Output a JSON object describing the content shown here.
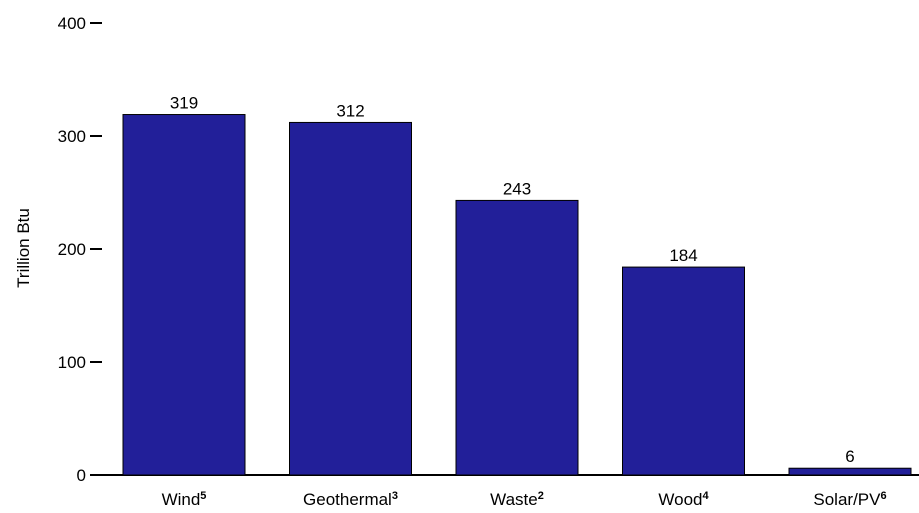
{
  "chart_data": {
    "type": "bar",
    "categories": [
      {
        "name": "Wind",
        "sup": "5"
      },
      {
        "name": "Geothermal",
        "sup": "3"
      },
      {
        "name": "Waste",
        "sup": "2"
      },
      {
        "name": "Wood",
        "sup": "4"
      },
      {
        "name": "Solar/PV",
        "sup": "6"
      }
    ],
    "values": [
      319,
      312,
      243,
      184,
      6
    ],
    "data_labels": [
      "319",
      "312",
      "243",
      "184",
      "6"
    ],
    "ylabel": "Trillion Btu",
    "xlabel": "",
    "title": "",
    "ylim": [
      0,
      400
    ],
    "yticks": [
      "0",
      "100",
      "200",
      "300",
      "400"
    ],
    "bar_color": "#221f99",
    "grid": false
  }
}
